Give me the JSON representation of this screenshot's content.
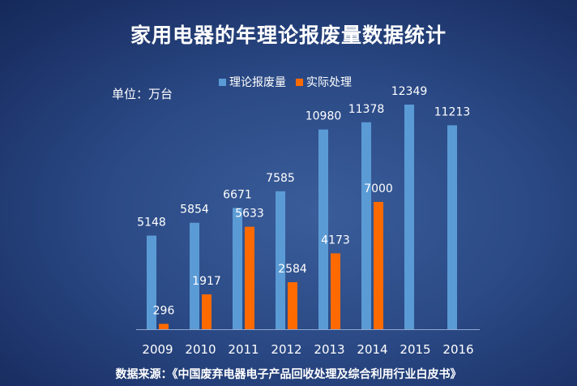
{
  "chart_data": {
    "type": "bar",
    "title": "家用电器的年理论报废量数据统计",
    "unit_label": "单位：万台",
    "categories": [
      "2009",
      "2010",
      "2011",
      "2012",
      "2013",
      "2014",
      "2015",
      "2016"
    ],
    "series": [
      {
        "name": "理论报废量",
        "color": "#5b9bd5",
        "values": [
          5148,
          5854,
          6671,
          7585,
          10980,
          11378,
          12349,
          11213
        ]
      },
      {
        "name": "实际处理",
        "color": "#ff6a00",
        "values": [
          296,
          1917,
          5633,
          2584,
          4173,
          7000,
          null,
          null
        ]
      }
    ],
    "ylim": [
      0,
      12349
    ],
    "grid": false,
    "legend_position": "top"
  },
  "footer": {
    "source": "数据来源：《中国废弃电器电子产品回收处理及综合利用行业白皮书》"
  }
}
